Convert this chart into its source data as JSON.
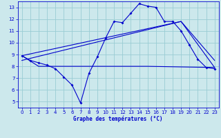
{
  "title": "Graphe des températures (°C)",
  "bg_color": "#cce8ec",
  "grid_color": "#99ccd4",
  "line_color": "#0000cc",
  "spine_color": "#0000cc",
  "xlim": [
    -0.5,
    23.5
  ],
  "ylim": [
    4.5,
    13.5
  ],
  "xticks": [
    0,
    1,
    2,
    3,
    4,
    5,
    6,
    7,
    8,
    9,
    10,
    11,
    12,
    13,
    14,
    15,
    16,
    17,
    18,
    19,
    20,
    21,
    22,
    23
  ],
  "yticks": [
    5,
    6,
    7,
    8,
    9,
    10,
    11,
    12,
    13
  ],
  "line1_x": [
    0,
    1,
    2,
    3,
    4,
    5,
    6,
    7,
    8,
    9,
    10,
    11,
    12,
    13,
    14,
    15,
    16,
    17,
    18,
    19,
    20,
    21,
    22,
    23
  ],
  "line1_y": [
    8.9,
    8.5,
    8.3,
    8.1,
    7.8,
    7.1,
    6.4,
    4.9,
    7.4,
    8.8,
    10.4,
    11.8,
    11.7,
    12.5,
    13.3,
    13.1,
    13.0,
    11.8,
    11.8,
    11.0,
    9.8,
    8.6,
    7.9,
    7.8
  ],
  "line2_x": [
    0,
    2,
    15,
    23
  ],
  "line2_y": [
    8.9,
    8.0,
    8.0,
    7.9
  ],
  "line3_x": [
    0,
    19,
    23
  ],
  "line3_y": [
    8.5,
    11.8,
    7.9
  ],
  "line4_x": [
    0,
    19,
    23
  ],
  "line4_y": [
    8.9,
    11.8,
    8.5
  ]
}
